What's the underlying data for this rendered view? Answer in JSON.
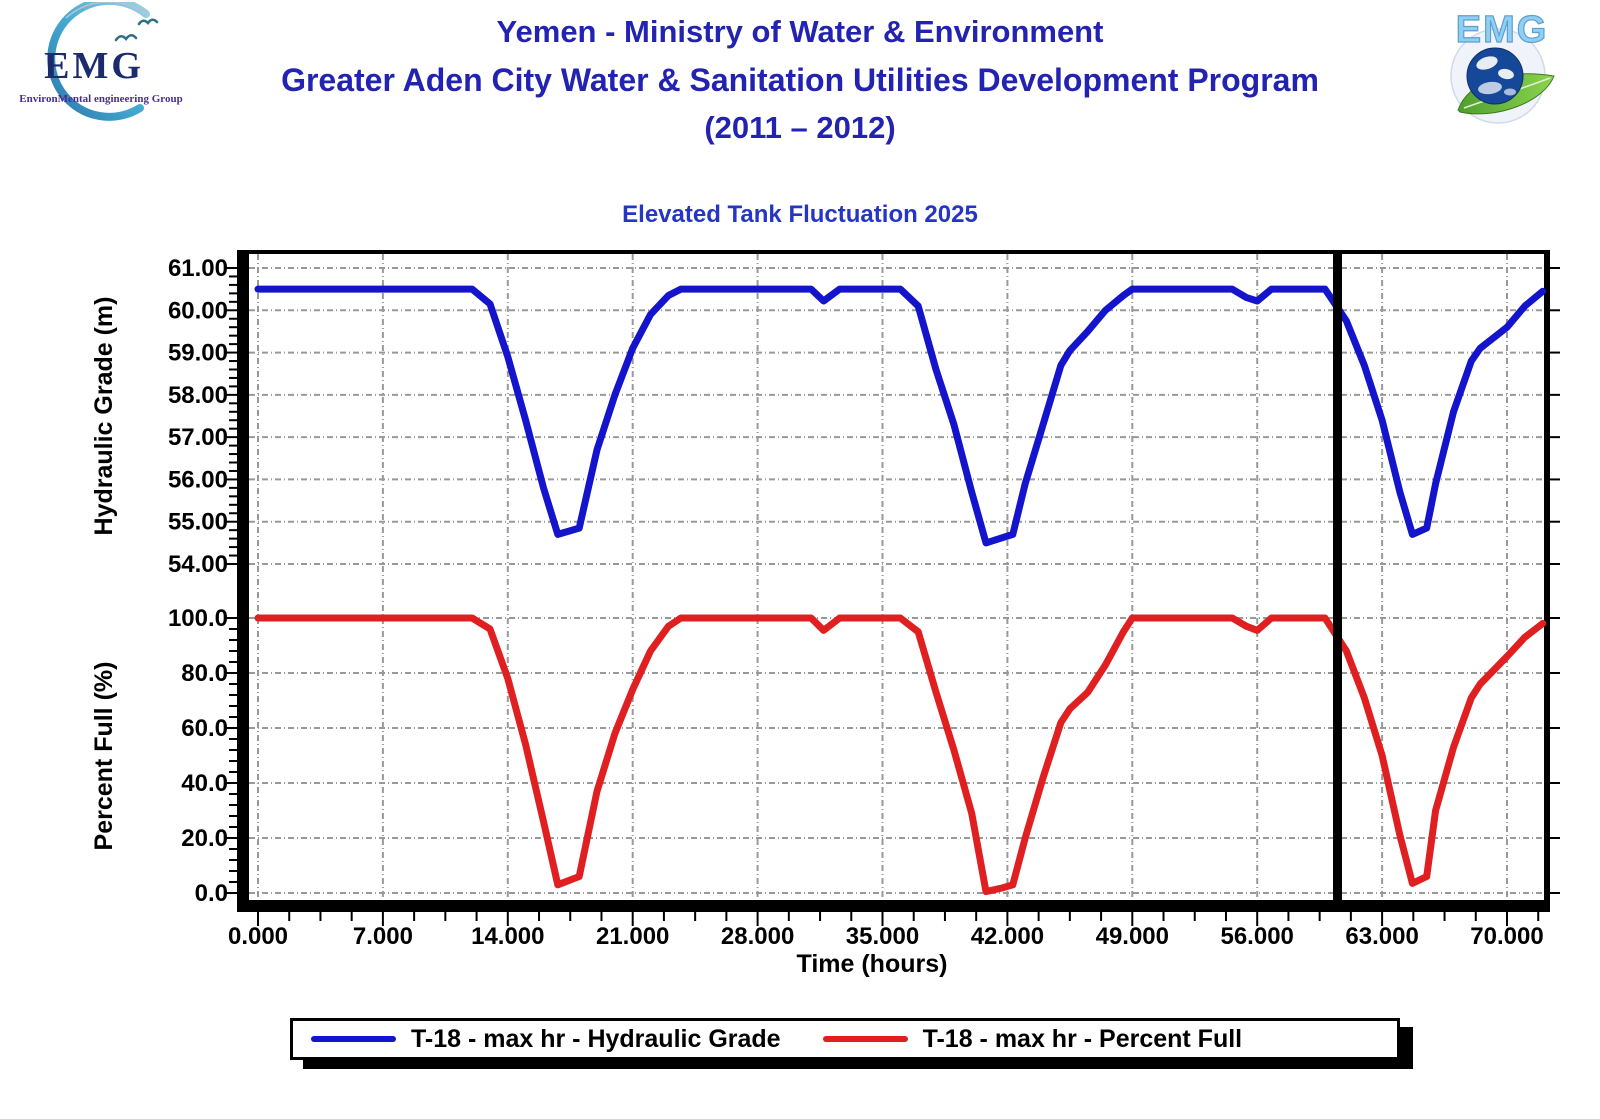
{
  "header": {
    "title_line1": "Yemen - Ministry of Water & Environment",
    "title_line2": "Greater Aden City Water & Sanitation Utilities Development Program",
    "title_line3": "(2011 – 2012)",
    "logo_left": {
      "name": "EMG",
      "subtitle": "EnvironMental engineering Group"
    },
    "logo_right": {
      "name": "EMG"
    }
  },
  "colors": {
    "header_blue": "#2323b2",
    "chart_title_blue": "#2535c6",
    "curve_blue": "#1414cc",
    "curve_red": "#e02020",
    "grid_gray": "#999999",
    "axis_black": "#000000"
  },
  "chart_data": {
    "type": "line",
    "title": "Elevated Tank Fluctuation 2025",
    "xlabel": "Time (hours)",
    "xlim": [
      0,
      72.2
    ],
    "x_ticks": [
      0,
      7,
      14,
      21,
      28,
      35,
      42,
      49,
      56,
      63,
      70
    ],
    "x_tick_labels": [
      "0.000",
      "7.000",
      "14.000",
      "21.000",
      "28.000",
      "35.000",
      "42.000",
      "49.000",
      "56.000",
      "63.000",
      "70.000"
    ],
    "x_minor_step": 1.75,
    "grid": "dashed",
    "marker_hour": 60.5,
    "axes": {
      "hydraulic": {
        "label": "Hydraulic Grade (m)",
        "range": [
          54,
          61
        ],
        "ticks": [
          61,
          60,
          59,
          58,
          57,
          56,
          55,
          54
        ],
        "tick_labels": [
          "61.00",
          "60.00",
          "59.00",
          "58.00",
          "57.00",
          "56.00",
          "55.00",
          "54.00"
        ],
        "minor_step": 0.2
      },
      "percent": {
        "label": "Percent Full (%)",
        "range": [
          0,
          100
        ],
        "ticks": [
          100,
          80,
          60,
          40,
          20,
          0
        ],
        "tick_labels": [
          "100.0",
          "80.0",
          "60.0",
          "40.0",
          "20.0",
          "0.0"
        ],
        "minor_step": 4
      }
    },
    "series": [
      {
        "name": "T-18 - max hr - Hydraulic Grade",
        "axis": "hydraulic",
        "color": "#1414cc",
        "points": [
          [
            0,
            60.5
          ],
          [
            12,
            60.5
          ],
          [
            13,
            60.15
          ],
          [
            14,
            58.9
          ],
          [
            15,
            57.4
          ],
          [
            16,
            55.8
          ],
          [
            16.8,
            54.7
          ],
          [
            18,
            54.85
          ],
          [
            19,
            56.7
          ],
          [
            20,
            58.0
          ],
          [
            21,
            59.1
          ],
          [
            22,
            59.9
          ],
          [
            23,
            60.35
          ],
          [
            23.7,
            60.5
          ],
          [
            31,
            60.5
          ],
          [
            31.7,
            60.22
          ],
          [
            32.6,
            60.5
          ],
          [
            36,
            60.5
          ],
          [
            37,
            60.1
          ],
          [
            38,
            58.6
          ],
          [
            39,
            57.3
          ],
          [
            40,
            55.7
          ],
          [
            40.8,
            54.5
          ],
          [
            41.7,
            54.62
          ],
          [
            42.3,
            54.7
          ],
          [
            43,
            55.9
          ],
          [
            44,
            57.3
          ],
          [
            45,
            58.7
          ],
          [
            45.5,
            59.05
          ],
          [
            46.5,
            59.5
          ],
          [
            47.5,
            60.0
          ],
          [
            48.5,
            60.35
          ],
          [
            49,
            60.5
          ],
          [
            54.6,
            60.5
          ],
          [
            55.4,
            60.3
          ],
          [
            56,
            60.22
          ],
          [
            56.8,
            60.5
          ],
          [
            59.8,
            60.5
          ],
          [
            61,
            59.75
          ],
          [
            62,
            58.7
          ],
          [
            63,
            57.4
          ],
          [
            64,
            55.7
          ],
          [
            64.7,
            54.7
          ],
          [
            65.5,
            54.85
          ],
          [
            66,
            55.9
          ],
          [
            67,
            57.6
          ],
          [
            68,
            58.8
          ],
          [
            68.5,
            59.1
          ],
          [
            70,
            59.6
          ],
          [
            71,
            60.1
          ],
          [
            72,
            60.45
          ]
        ]
      },
      {
        "name": "T-18 - max hr - Percent Full",
        "axis": "percent",
        "color": "#e02020",
        "points": [
          [
            0,
            100
          ],
          [
            12,
            100
          ],
          [
            13,
            96
          ],
          [
            14,
            78
          ],
          [
            15,
            54
          ],
          [
            16,
            26
          ],
          [
            16.8,
            3
          ],
          [
            18,
            6
          ],
          [
            19,
            37
          ],
          [
            20,
            58
          ],
          [
            21,
            74
          ],
          [
            22,
            88
          ],
          [
            23,
            97
          ],
          [
            23.7,
            100
          ],
          [
            31,
            100
          ],
          [
            31.7,
            95.5
          ],
          [
            32.6,
            100
          ],
          [
            36,
            100
          ],
          [
            37,
            95
          ],
          [
            38,
            73
          ],
          [
            39,
            52
          ],
          [
            40,
            29
          ],
          [
            40.8,
            0.5
          ],
          [
            41.7,
            1.8
          ],
          [
            42.3,
            3
          ],
          [
            43,
            20
          ],
          [
            44,
            42
          ],
          [
            45,
            62
          ],
          [
            45.5,
            67
          ],
          [
            46.5,
            73
          ],
          [
            47.5,
            83
          ],
          [
            48.5,
            95
          ],
          [
            49,
            100
          ],
          [
            54.6,
            100
          ],
          [
            55.4,
            97
          ],
          [
            56,
            95.5
          ],
          [
            56.8,
            100
          ],
          [
            59.8,
            100
          ],
          [
            61,
            88
          ],
          [
            62,
            71
          ],
          [
            63,
            50
          ],
          [
            64,
            21
          ],
          [
            64.7,
            3.5
          ],
          [
            65.5,
            6
          ],
          [
            66,
            30
          ],
          [
            67,
            53
          ],
          [
            68,
            71
          ],
          [
            68.5,
            76
          ],
          [
            70,
            86
          ],
          [
            71,
            93
          ],
          [
            72,
            98
          ]
        ]
      }
    ],
    "legend": {
      "position": "bottom",
      "entries": [
        "T-18 - max hr - Hydraulic Grade",
        "T-18 - max hr - Percent Full"
      ]
    }
  }
}
